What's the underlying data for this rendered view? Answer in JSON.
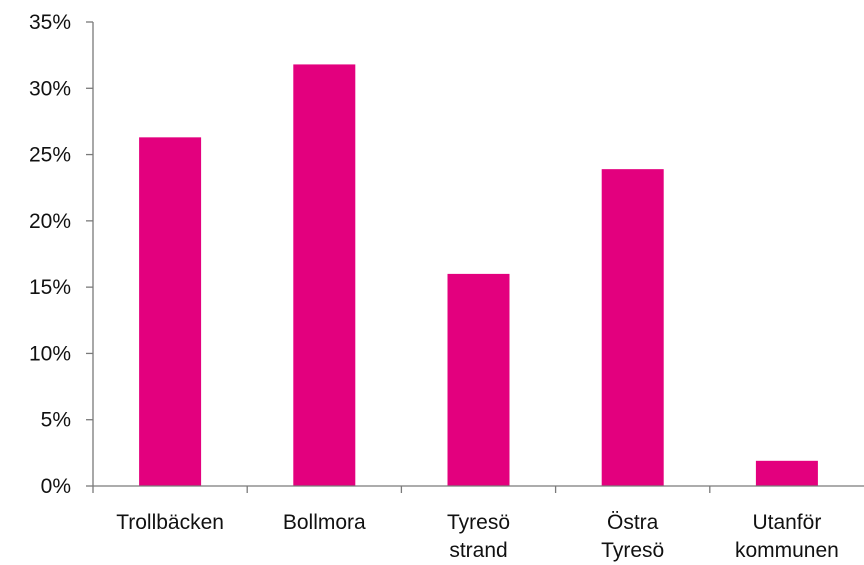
{
  "chart_data": {
    "type": "bar",
    "categories": [
      [
        "Trollbäcken"
      ],
      [
        "Bollmora"
      ],
      [
        "Tyresö",
        "strand"
      ],
      [
        "Östra",
        "Tyresö"
      ],
      [
        "Utanför",
        "kommunen"
      ]
    ],
    "values": [
      26.3,
      31.8,
      16.0,
      23.9,
      1.9
    ],
    "ylim": [
      0,
      35
    ],
    "y_ticks": [
      0,
      5,
      10,
      15,
      20,
      25,
      30,
      35
    ],
    "y_tick_labels": [
      "0%",
      "5%",
      "10%",
      "15%",
      "20%",
      "25%",
      "30%",
      "35%"
    ],
    "bar_color": "#e3007e",
    "grid": false,
    "title": "",
    "xlabel": "",
    "ylabel": ""
  }
}
